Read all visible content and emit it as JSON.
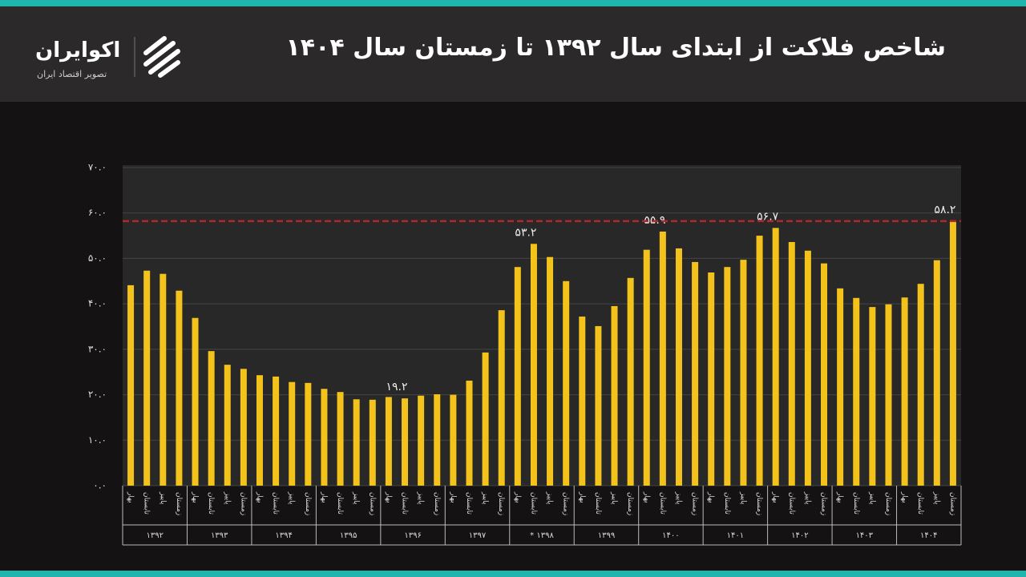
{
  "header": {
    "title": "شاخص فلاکت از ابتدای سال ۱۳۹۲ تا زمستان سال ۱۴۰۴",
    "brand": "اکوایران",
    "tagline": "تصویر اقتصاد ایران"
  },
  "chart_data": {
    "type": "bar",
    "color": "#f3c21b",
    "grid": true,
    "ylim": [
      0,
      70
    ],
    "yticks": [
      {
        "value": 0,
        "label": "۰.۰"
      },
      {
        "value": 10,
        "label": "۱۰.۰"
      },
      {
        "value": 20,
        "label": "۲۰.۰"
      },
      {
        "value": 30,
        "label": "۳۰.۰"
      },
      {
        "value": 40,
        "label": "۴۰.۰"
      },
      {
        "value": 50,
        "label": "۵۰.۰"
      },
      {
        "value": 60,
        "label": "۶۰.۰"
      },
      {
        "value": 70,
        "label": "۷۰.۰"
      }
    ],
    "categories": [
      "بهار",
      "تابستان",
      "پاییز",
      "زمستان",
      "بهار",
      "تابستان",
      "پاییز",
      "زمستان",
      "بهار",
      "تابستان",
      "پاییز",
      "زمستان",
      "بهار",
      "تابستان",
      "پاییز",
      "زمستان",
      "بهار",
      "تابستان",
      "پاییز",
      "زمستان",
      "بهار",
      "تابستان",
      "پاییز",
      "زمستان",
      "بهار",
      "تابستان",
      "پاییز",
      "زمستان",
      "بهار",
      "تابستان",
      "پاییز",
      "زمستان",
      "بهار",
      "تابستان",
      "پاییز",
      "زمستان",
      "بهار",
      "تابستان",
      "پاییز",
      "زمستان",
      "بهار",
      "تابستان",
      "پاییز",
      "زمستان",
      "بهار",
      "تابستان",
      "پاییز",
      "زمستان",
      "بهار",
      "تابستان",
      "پاییز",
      "زمستان"
    ],
    "groups": [
      "۱۳۹۲",
      "۱۳۹۳",
      "۱۳۹۴",
      "۱۳۹۵",
      "۱۳۹۶",
      "۱۳۹۷",
      "۱۳۹۸ *",
      "۱۳۹۹",
      "۱۴۰۰",
      "۱۴۰۱",
      "۱۴۰۲",
      "۱۴۰۳",
      "۱۴۰۴"
    ],
    "values": [
      44.1,
      47.3,
      46.6,
      42.9,
      36.9,
      29.6,
      26.6,
      25.7,
      24.3,
      24.0,
      22.8,
      22.6,
      21.3,
      20.6,
      19.0,
      18.9,
      19.5,
      19.2,
      19.8,
      20.1,
      20.0,
      23.1,
      29.3,
      38.6,
      48.1,
      53.2,
      50.3,
      45.0,
      37.2,
      35.1,
      39.5,
      45.7,
      51.9,
      55.9,
      52.2,
      49.2,
      46.9,
      48.1,
      49.7,
      55.0,
      56.7,
      53.6,
      51.7,
      48.9,
      43.4,
      41.3,
      39.3,
      39.9,
      41.4,
      44.4,
      49.6,
      58.2
    ],
    "value_labels": [
      null,
      null,
      null,
      null,
      null,
      null,
      null,
      null,
      null,
      null,
      null,
      null,
      null,
      null,
      null,
      null,
      null,
      "۱۹.۲",
      null,
      null,
      null,
      null,
      null,
      null,
      null,
      "۵۳.۲",
      null,
      null,
      null,
      null,
      null,
      null,
      null,
      "۵۵.۹",
      null,
      null,
      null,
      null,
      null,
      null,
      "۵۶.۷",
      null,
      null,
      null,
      null,
      null,
      null,
      null,
      null,
      null,
      null,
      "۵۸.۲"
    ],
    "reference_line": {
      "value": 58.2,
      "color": "#b3262a"
    }
  }
}
